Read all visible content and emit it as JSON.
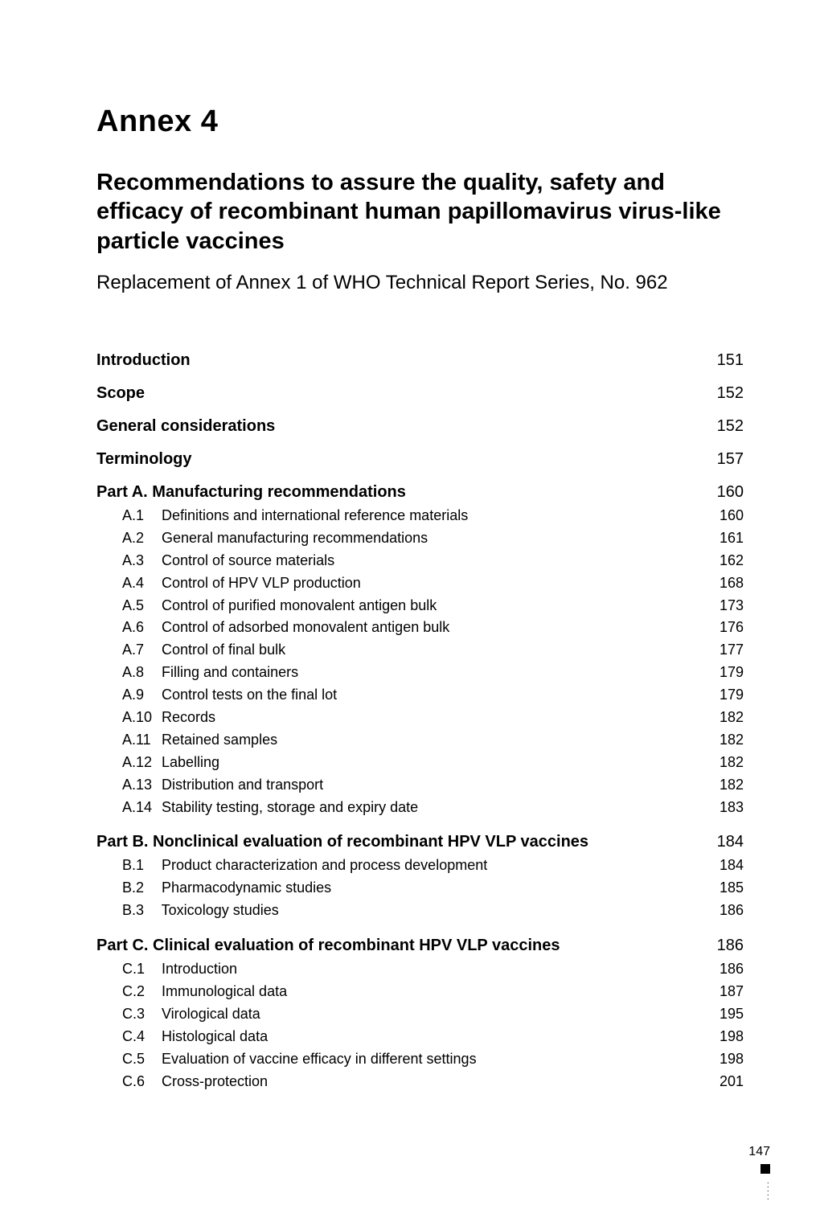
{
  "annex": "Annex 4",
  "title": "Recommendations to assure the quality, safety and efficacy of recombinant human papillomavirus virus-like particle vaccines",
  "subtitle": "Replacement of Annex 1 of WHO Technical Report Series, No. 962",
  "toc": [
    {
      "level": 1,
      "label": "Introduction",
      "page": 151
    },
    {
      "level": 1,
      "label": "Scope",
      "page": 152
    },
    {
      "level": 1,
      "label": "General considerations",
      "page": 152
    },
    {
      "level": 1,
      "label": "Terminology",
      "page": 157
    },
    {
      "level": 1,
      "label": "Part A. Manufacturing recommendations",
      "page": 160
    },
    {
      "level": 2,
      "code": "A.1",
      "label": "Definitions and international reference materials",
      "page": 160
    },
    {
      "level": 2,
      "code": "A.2",
      "label": "General manufacturing recommendations",
      "page": 161
    },
    {
      "level": 2,
      "code": "A.3",
      "label": "Control of source materials",
      "page": 162
    },
    {
      "level": 2,
      "code": "A.4",
      "label": "Control of HPV VLP production",
      "page": 168
    },
    {
      "level": 2,
      "code": "A.5",
      "label": "Control of purified monovalent antigen bulk",
      "page": 173
    },
    {
      "level": 2,
      "code": "A.6",
      "label": "Control of adsorbed monovalent antigen bulk",
      "page": 176
    },
    {
      "level": 2,
      "code": "A.7",
      "label": "Control of final bulk",
      "page": 177
    },
    {
      "level": 2,
      "code": "A.8",
      "label": "Filling and containers",
      "page": 179
    },
    {
      "level": 2,
      "code": "A.9",
      "label": "Control tests on the final lot",
      "page": 179
    },
    {
      "level": 2,
      "code": "A.10",
      "label": "Records",
      "page": 182
    },
    {
      "level": 2,
      "code": "A.11",
      "label": "Retained samples",
      "page": 182
    },
    {
      "level": 2,
      "code": "A.12",
      "label": "Labelling",
      "page": 182
    },
    {
      "level": 2,
      "code": "A.13",
      "label": "Distribution and transport",
      "page": 182
    },
    {
      "level": 2,
      "code": "A.14",
      "label": "Stability testing, storage and expiry date",
      "page": 183
    },
    {
      "level": 1,
      "label": "Part B. Nonclinical evaluation of recombinant HPV VLP vaccines",
      "page": 184
    },
    {
      "level": 2,
      "code": "B.1",
      "label": "Product characterization and process development",
      "page": 184
    },
    {
      "level": 2,
      "code": "B.2",
      "label": "Pharmacodynamic studies",
      "page": 185
    },
    {
      "level": 2,
      "code": "B.3",
      "label": "Toxicology studies",
      "page": 186
    },
    {
      "level": 1,
      "label": "Part C. Clinical evaluation of recombinant HPV VLP vaccines",
      "page": 186
    },
    {
      "level": 2,
      "code": "C.1",
      "label": "Introduction",
      "page": 186
    },
    {
      "level": 2,
      "code": "C.2",
      "label": "Immunological data",
      "page": 187
    },
    {
      "level": 2,
      "code": "C.3",
      "label": "Virological data",
      "page": 195
    },
    {
      "level": 2,
      "code": "C.4",
      "label": "Histological data",
      "page": 198
    },
    {
      "level": 2,
      "code": "C.5",
      "label": "Evaluation of vaccine efficacy in different settings",
      "page": 198
    },
    {
      "level": 2,
      "code": "C.6",
      "label": "Cross-protection",
      "page": 201
    }
  ],
  "page_number": 147,
  "style": {
    "background": "#ffffff",
    "text_color": "#000000",
    "annex_fontsize": 38,
    "title_fontsize": 29,
    "subtitle_fontsize": 24,
    "h1_fontsize": 20,
    "sub_fontsize": 18,
    "footer_fontsize": 16
  }
}
